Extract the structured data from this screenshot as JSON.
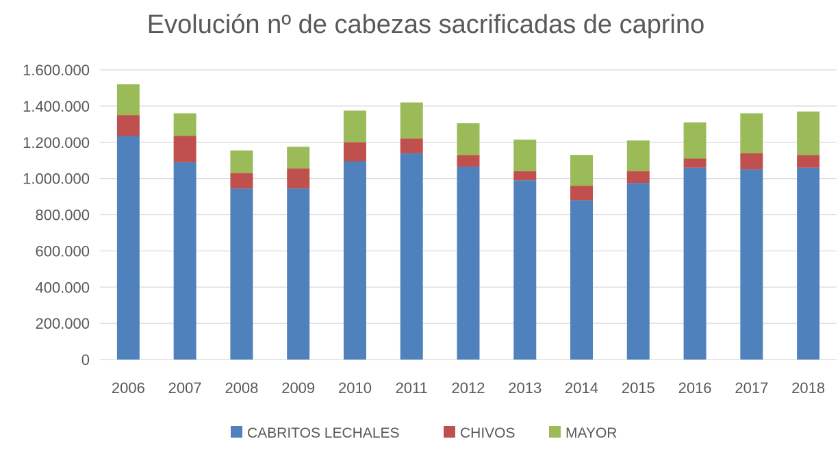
{
  "chart_data": {
    "type": "bar",
    "stacked": true,
    "title": "Evolución nº de cabezas sacrificadas de caprino",
    "xlabel": "",
    "ylabel": "",
    "ylim": [
      0,
      1600000
    ],
    "y_ticks": [
      0,
      200000,
      400000,
      600000,
      800000,
      1000000,
      1200000,
      1400000,
      1600000
    ],
    "y_tick_labels": [
      "0",
      "200.000",
      "400.000",
      "600.000",
      "800.000",
      "1.000.000",
      "1.200.000",
      "1.400.000",
      "1.600.000"
    ],
    "grid": true,
    "legend_position": "bottom",
    "categories": [
      "2006",
      "2007",
      "2008",
      "2009",
      "2010",
      "2011",
      "2012",
      "2013",
      "2014",
      "2015",
      "2016",
      "2017",
      "2018"
    ],
    "series": [
      {
        "name": "CABRITOS LECHALES",
        "color": "#4f81bd",
        "values": [
          1235000,
          1090000,
          945000,
          945000,
          1095000,
          1140000,
          1065000,
          990000,
          880000,
          975000,
          1060000,
          1050000,
          1060000
        ]
      },
      {
        "name": "CHIVOS",
        "color": "#c0504d",
        "values": [
          115000,
          145000,
          85000,
          110000,
          105000,
          80000,
          65000,
          50000,
          80000,
          65000,
          50000,
          90000,
          70000
        ]
      },
      {
        "name": "MAYOR",
        "color": "#9bbb59",
        "values": [
          170000,
          125000,
          125000,
          120000,
          175000,
          200000,
          175000,
          175000,
          170000,
          170000,
          200000,
          220000,
          240000
        ]
      }
    ]
  }
}
